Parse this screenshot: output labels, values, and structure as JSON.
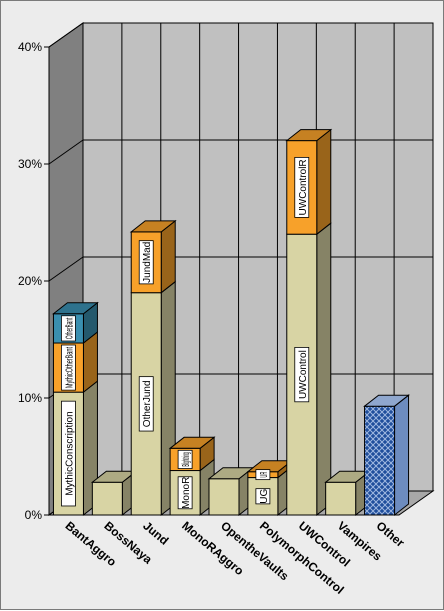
{
  "chart_data": {
    "type": "bar",
    "stacked": true,
    "three_d": true,
    "grid": true,
    "legend": "none",
    "ylim": [
      0,
      40
    ],
    "yticks": [
      "0%",
      "10%",
      "20%",
      "30%",
      "40%"
    ],
    "categories": [
      "BantAggro",
      "BossNaya",
      "Jund",
      "MonoRAggro",
      "OpentheVaults",
      "PolymorphControl",
      "UWControl",
      "Vampires",
      "Other"
    ],
    "stacks": [
      {
        "category": "BantAggro",
        "segments": [
          {
            "label": "MythicConscription",
            "value": 10.5,
            "color": "#d8d4a4"
          },
          {
            "label": "MythicOtherBant",
            "value": 4.2,
            "color": "#f7a12a"
          },
          {
            "label": "OtherBant",
            "value": 2.5,
            "color": "#3a8fb0"
          }
        ]
      },
      {
        "category": "BossNaya",
        "segments": [
          {
            "label": "",
            "value": 2.8,
            "color": "#d8d4a4"
          }
        ]
      },
      {
        "category": "Jund",
        "segments": [
          {
            "label": "OtherJund",
            "value": 19.0,
            "color": "#d8d4a4"
          },
          {
            "label": "JundMad",
            "value": 5.2,
            "color": "#f7a12a"
          }
        ]
      },
      {
        "category": "MonoRAggro",
        "segments": [
          {
            "label": "MonoR",
            "value": 3.8,
            "color": "#d8d4a4"
          },
          {
            "label": "Blightning",
            "value": 1.9,
            "color": "#f7a12a"
          }
        ]
      },
      {
        "category": "OpentheVaults",
        "segments": [
          {
            "label": "",
            "value": 3.1,
            "color": "#d8d4a4"
          }
        ]
      },
      {
        "category": "PolymorphControl",
        "segments": [
          {
            "label": "UG",
            "value": 3.2,
            "color": "#d8d4a4"
          },
          {
            "label": "UR",
            "value": 0.5,
            "color": "#f7a12a"
          }
        ]
      },
      {
        "category": "UWControl",
        "segments": [
          {
            "label": "UWControl",
            "value": 24.0,
            "color": "#d8d4a4"
          },
          {
            "label": "UWControlR",
            "value": 8.0,
            "color": "#f7a12a"
          }
        ]
      },
      {
        "category": "Vampires",
        "segments": [
          {
            "label": "",
            "value": 2.8,
            "color": "#d8d4a4"
          }
        ]
      },
      {
        "category": "Other",
        "segments": [
          {
            "label": "",
            "value": 9.3,
            "color": "#1f4e9c",
            "pattern": "crosshatch"
          }
        ]
      }
    ]
  }
}
